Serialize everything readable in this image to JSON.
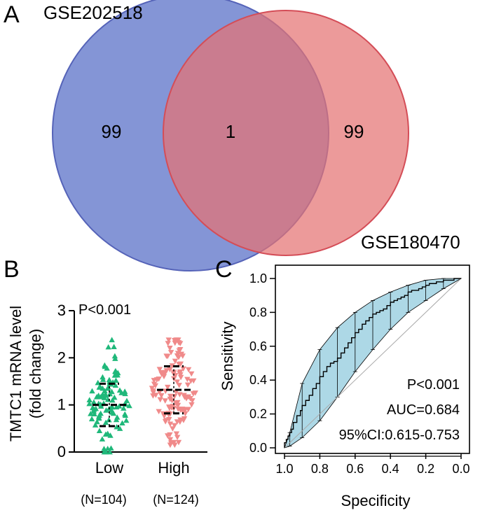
{
  "colors": {
    "venn_left": "#6f82cf",
    "venn_left_stroke": "#5563b8",
    "venn_right": "#e57373",
    "venn_right_stroke": "#d44d57",
    "group_low": "#1fb87a",
    "group_high": "#f08a8a",
    "roc_band": "#add8e6"
  },
  "chart_data": [
    {
      "type": "venn",
      "panel": "A",
      "sets": [
        {
          "name": "GSE202518",
          "only": "99"
        },
        {
          "name": "GSE180470",
          "only": "99"
        }
      ],
      "intersection": "1"
    },
    {
      "type": "scatter",
      "panel": "B",
      "ylabel": "TMTC1 mRNA level",
      "ylabel2": "(fold change)",
      "ylim": [
        0,
        3
      ],
      "yticks": [
        "0",
        "1",
        "2",
        "3"
      ],
      "annotation": "P<0.001",
      "groups": [
        {
          "name": "Low",
          "n_label": "(N=104)",
          "marker": "triangle-up",
          "mean": 1.0,
          "sd_low": 0.55,
          "sd_high": 1.45,
          "min": 0.0,
          "max": 2.38,
          "count": 104
        },
        {
          "name": "High",
          "n_label": "(N=124)",
          "marker": "triangle-down",
          "mean": 1.32,
          "sd_low": 0.82,
          "sd_high": 1.82,
          "min": 0.15,
          "max": 2.38,
          "count": 124
        }
      ]
    },
    {
      "type": "line",
      "panel": "C",
      "xlabel": "Specificity",
      "ylabel": "Sensitivity",
      "xlim": [
        1.0,
        0.0
      ],
      "ylim": [
        0.0,
        1.0
      ],
      "xticks": [
        "1.0",
        "0.8",
        "0.6",
        "0.4",
        "0.2",
        "0.0"
      ],
      "yticks": [
        "0.0",
        "0.2",
        "0.4",
        "0.6",
        "0.8",
        "1.0"
      ],
      "annotations": {
        "p": "P<0.001",
        "auc": "AUC=0.684",
        "ci": "95%CI:0.615-0.753"
      },
      "roc": {
        "specificity": [
          1.0,
          0.99,
          0.98,
          0.97,
          0.96,
          0.95,
          0.93,
          0.91,
          0.9,
          0.88,
          0.86,
          0.84,
          0.82,
          0.8,
          0.78,
          0.76,
          0.74,
          0.72,
          0.7,
          0.68,
          0.66,
          0.64,
          0.62,
          0.6,
          0.58,
          0.56,
          0.54,
          0.52,
          0.5,
          0.48,
          0.46,
          0.44,
          0.42,
          0.4,
          0.38,
          0.36,
          0.34,
          0.32,
          0.3,
          0.28,
          0.26,
          0.24,
          0.22,
          0.2,
          0.18,
          0.16,
          0.14,
          0.12,
          0.1,
          0.08,
          0.06,
          0.04,
          0.02,
          0.0
        ],
        "sensitivity": [
          0.0,
          0.03,
          0.05,
          0.07,
          0.09,
          0.11,
          0.15,
          0.19,
          0.22,
          0.25,
          0.28,
          0.31,
          0.35,
          0.38,
          0.42,
          0.45,
          0.48,
          0.5,
          0.51,
          0.53,
          0.56,
          0.59,
          0.62,
          0.65,
          0.68,
          0.7,
          0.73,
          0.75,
          0.77,
          0.79,
          0.8,
          0.81,
          0.82,
          0.84,
          0.86,
          0.87,
          0.88,
          0.89,
          0.9,
          0.92,
          0.93,
          0.93,
          0.94,
          0.95,
          0.96,
          0.97,
          0.97,
          0.98,
          0.98,
          0.99,
          0.99,
          0.99,
          1.0,
          1.0
        ],
        "ci_x": [
          1.0,
          0.97,
          0.9,
          0.8,
          0.7,
          0.6,
          0.5,
          0.4,
          0.3,
          0.2,
          0.1,
          0.0
        ],
        "ci_low": [
          0.0,
          0.01,
          0.06,
          0.16,
          0.3,
          0.45,
          0.58,
          0.7,
          0.8,
          0.87,
          0.94,
          1.0
        ],
        "ci_high": [
          0.0,
          0.09,
          0.38,
          0.58,
          0.71,
          0.8,
          0.87,
          0.92,
          0.96,
          0.99,
          1.0,
          1.0
        ]
      }
    }
  ]
}
